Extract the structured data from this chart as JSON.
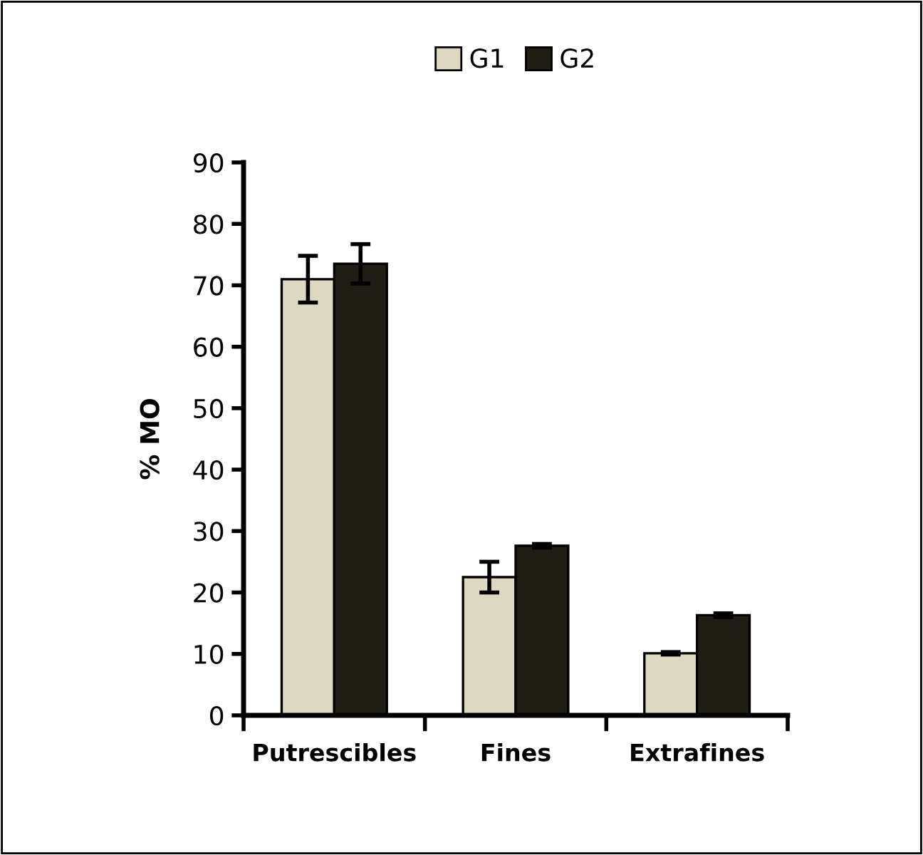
{
  "chart_data": {
    "type": "bar",
    "ylabel": "% MO",
    "categories": [
      "Putrescibles",
      "Fines",
      "Extrafines"
    ],
    "series": [
      {
        "name": "G1",
        "color": "#ddd9c3",
        "values": [
          71,
          22.5,
          10.1
        ],
        "errors": [
          3.8,
          2.5,
          0.2
        ]
      },
      {
        "name": "G2",
        "color": "#1f1d14",
        "values": [
          73.5,
          27.6,
          16.3
        ],
        "errors": [
          3.2,
          0.3,
          0.3
        ]
      }
    ],
    "ylim": [
      0,
      90
    ],
    "yticks": [
      0,
      10,
      20,
      30,
      40,
      50,
      60,
      70,
      80,
      90
    ],
    "grid": false,
    "legend": "top"
  }
}
